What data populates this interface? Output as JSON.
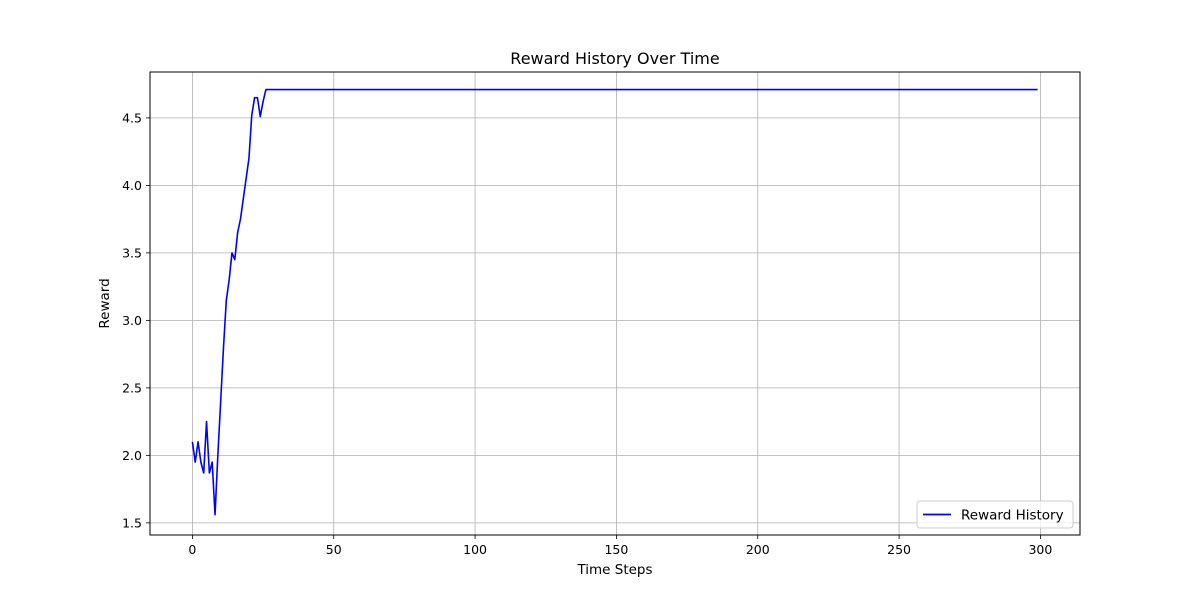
{
  "chart_data": {
    "type": "line",
    "title": "Reward History Over Time",
    "xlabel": "Time Steps",
    "ylabel": "Reward",
    "xlim": [
      -15,
      314
    ],
    "ylim": [
      1.41,
      4.84
    ],
    "xticks": [
      0,
      50,
      100,
      150,
      200,
      250,
      300
    ],
    "yticks": [
      1.5,
      2.0,
      2.5,
      3.0,
      3.5,
      4.0,
      4.5
    ],
    "grid": true,
    "legend_position": "bottom-right",
    "series": [
      {
        "name": "Reward History",
        "color": "#0000ff",
        "x": [
          0,
          1,
          2,
          3,
          4,
          5,
          6,
          7,
          8,
          9,
          10,
          11,
          12,
          13,
          14,
          15,
          16,
          17,
          18,
          19,
          20,
          21,
          22,
          23,
          24,
          25,
          26,
          27,
          30,
          50,
          100,
          150,
          200,
          250,
          299
        ],
        "y": [
          2.1,
          1.95,
          2.1,
          1.95,
          1.87,
          2.25,
          1.87,
          1.95,
          1.56,
          2.0,
          2.4,
          2.8,
          3.15,
          3.3,
          3.5,
          3.45,
          3.65,
          3.75,
          3.9,
          4.05,
          4.2,
          4.52,
          4.65,
          4.65,
          4.51,
          4.62,
          4.71,
          4.71,
          4.71,
          4.71,
          4.71,
          4.71,
          4.71,
          4.71,
          4.71
        ]
      }
    ]
  }
}
